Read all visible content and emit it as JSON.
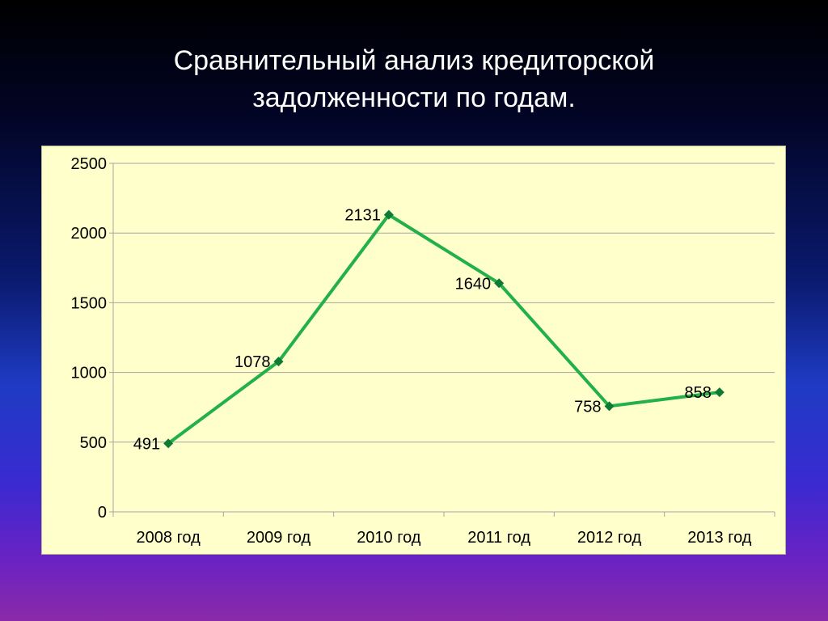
{
  "slide": {
    "title_line1": "Сравнительный анализ кредиторской",
    "title_line2": "задолженности по годам."
  },
  "colors": {
    "line": "#22b04a",
    "marker": "#0e7a34",
    "plot_background": "#ffffcc",
    "gridline": "#a6a6a6"
  },
  "chart_data": {
    "type": "line",
    "categories": [
      "2008 год",
      "2009 год",
      "2010 год",
      "2011 год",
      "2012 год",
      "2013 год"
    ],
    "series": [
      {
        "values": [
          491,
          1078,
          2131,
          1640,
          758,
          858
        ]
      }
    ],
    "data_labels": [
      "491",
      "1078",
      "2131",
      "1640",
      "758",
      "858"
    ],
    "yticks": [
      0,
      500,
      1000,
      1500,
      2000,
      2500
    ],
    "ylim": [
      0,
      2500
    ],
    "grid": true,
    "legend": "none",
    "marker": "diamond"
  }
}
